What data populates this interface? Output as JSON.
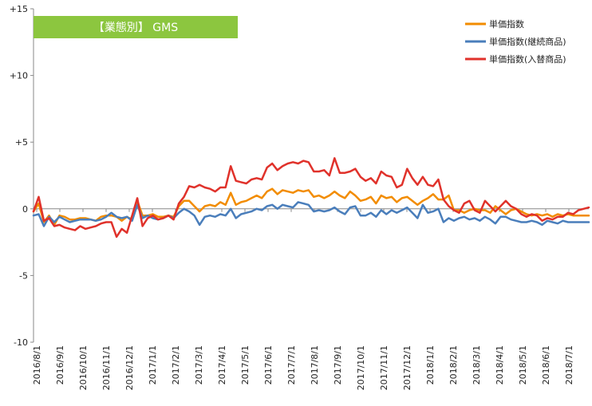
{
  "chart_data": {
    "type": "line",
    "title": "【業態別】 GMS",
    "title_box_color": "#8CC63F",
    "ylim": [
      -10,
      15
    ],
    "y_ticks": [
      {
        "value": 15,
        "label": "+15"
      },
      {
        "value": 10,
        "label": "+10"
      },
      {
        "value": 5,
        "label": "+5"
      },
      {
        "value": 0,
        "label": "0"
      },
      {
        "value": -5,
        "label": "-5"
      },
      {
        "value": -10,
        "label": "-10"
      }
    ],
    "x_tick_labels": [
      "2016/8/1",
      "2016/9/1",
      "2016/10/1",
      "2016/11/1",
      "2016/12/1",
      "2017/1/1",
      "2017/2/1",
      "2017/3/1",
      "2017/4/1",
      "2017/5/1",
      "2017/6/1",
      "2017/7/1",
      "2017/8/1",
      "2017/9/1",
      "2017/10/1",
      "2017/11/1",
      "2017/12/1",
      "2018/1/1",
      "2018/2/1",
      "2018/3/1",
      "2018/4/1",
      "2018/5/1",
      "2018/6/1",
      "2018/7/1"
    ],
    "legend_position": "top-right",
    "series": [
      {
        "name": "単価指数",
        "color": "#F28C00",
        "values": [
          -0.2,
          0.4,
          -1.0,
          -0.5,
          -1.2,
          -0.5,
          -0.6,
          -0.8,
          -0.8,
          -0.7,
          -0.7,
          -0.8,
          -0.9,
          -0.6,
          -0.5,
          -0.5,
          -0.6,
          -0.9,
          -0.6,
          -0.8,
          0.6,
          -0.5,
          -0.5,
          -0.4,
          -0.6,
          -0.6,
          -0.5,
          -0.6,
          0.2,
          0.6,
          0.6,
          0.2,
          -0.2,
          0.2,
          0.3,
          0.2,
          0.5,
          0.3,
          1.2,
          0.3,
          0.5,
          0.6,
          0.8,
          1.0,
          0.8,
          1.3,
          1.5,
          1.1,
          1.4,
          1.3,
          1.2,
          1.4,
          1.3,
          1.4,
          0.9,
          1.0,
          0.8,
          1.0,
          1.3,
          1.0,
          0.8,
          1.3,
          1.0,
          0.6,
          0.7,
          0.9,
          0.4,
          1.0,
          0.8,
          0.9,
          0.5,
          0.8,
          0.9,
          0.6,
          0.3,
          0.6,
          0.8,
          1.1,
          0.7,
          0.7,
          1.0,
          -0.1,
          -0.1,
          -0.3,
          -0.1,
          0.0,
          -0.1,
          -0.1,
          -0.3,
          0.2,
          -0.1,
          -0.4,
          -0.1,
          0.0,
          -0.2,
          -0.4,
          -0.5,
          -0.4,
          -0.5,
          -0.4,
          -0.6,
          -0.4,
          -0.5,
          -0.4,
          -0.5,
          -0.5,
          -0.5,
          -0.5
        ]
      },
      {
        "name": "単価指数(継続商品)",
        "color": "#4A7EBB",
        "values": [
          -0.5,
          -0.4,
          -1.3,
          -0.6,
          -1.0,
          -0.6,
          -0.8,
          -1.0,
          -0.9,
          -0.8,
          -0.8,
          -0.8,
          -0.9,
          -0.8,
          -0.6,
          -0.3,
          -0.6,
          -0.7,
          -0.6,
          -0.9,
          0.3,
          -0.7,
          -0.5,
          -0.7,
          -0.8,
          -0.7,
          -0.5,
          -0.7,
          -0.3,
          0.0,
          -0.2,
          -0.5,
          -1.2,
          -0.6,
          -0.5,
          -0.6,
          -0.4,
          -0.5,
          0.0,
          -0.7,
          -0.4,
          -0.3,
          -0.2,
          0.0,
          -0.1,
          0.2,
          0.3,
          0.0,
          0.3,
          0.2,
          0.1,
          0.5,
          0.4,
          0.3,
          -0.2,
          -0.1,
          -0.2,
          -0.1,
          0.1,
          -0.2,
          -0.4,
          0.1,
          0.2,
          -0.5,
          -0.5,
          -0.3,
          -0.6,
          -0.1,
          -0.4,
          -0.1,
          -0.3,
          -0.1,
          0.1,
          -0.3,
          -0.7,
          0.3,
          -0.3,
          -0.2,
          0.0,
          -1.0,
          -0.7,
          -0.9,
          -0.7,
          -0.6,
          -0.8,
          -0.7,
          -0.9,
          -0.6,
          -0.8,
          -1.1,
          -0.6,
          -0.6,
          -0.8,
          -0.9,
          -1.0,
          -1.0,
          -0.9,
          -1.0,
          -1.2,
          -0.9,
          -1.0,
          -1.1,
          -0.9,
          -1.0,
          -1.0,
          -1.0,
          -1.0,
          -1.0
        ]
      },
      {
        "name": "単価指数(入替商品)",
        "color": "#E0322B",
        "values": [
          -0.2,
          0.9,
          -0.9,
          -0.7,
          -1.3,
          -1.2,
          -1.4,
          -1.5,
          -1.6,
          -1.3,
          -1.5,
          -1.4,
          -1.3,
          -1.1,
          -1.0,
          -1.0,
          -2.1,
          -1.5,
          -1.8,
          -0.5,
          0.8,
          -1.3,
          -0.7,
          -0.5,
          -0.8,
          -0.7,
          -0.5,
          -0.8,
          0.4,
          0.9,
          1.7,
          1.6,
          1.8,
          1.6,
          1.5,
          1.3,
          1.6,
          1.6,
          3.2,
          2.1,
          2.0,
          1.9,
          2.2,
          2.3,
          2.2,
          3.1,
          3.4,
          2.9,
          3.2,
          3.4,
          3.5,
          3.4,
          3.6,
          3.5,
          2.8,
          2.8,
          2.9,
          2.5,
          3.8,
          2.7,
          2.7,
          2.8,
          3.0,
          2.4,
          2.1,
          2.3,
          1.9,
          2.8,
          2.5,
          2.4,
          1.6,
          1.8,
          3.0,
          2.3,
          1.8,
          2.4,
          1.8,
          1.7,
          2.2,
          0.7,
          0.2,
          -0.1,
          -0.3,
          0.4,
          0.6,
          -0.1,
          -0.3,
          0.6,
          0.2,
          -0.2,
          0.2,
          0.6,
          0.2,
          0.0,
          -0.4,
          -0.6,
          -0.4,
          -0.5,
          -0.9,
          -0.7,
          -0.8,
          -0.6,
          -0.6,
          -0.3,
          -0.4,
          -0.1,
          0.0,
          0.1
        ]
      }
    ]
  }
}
